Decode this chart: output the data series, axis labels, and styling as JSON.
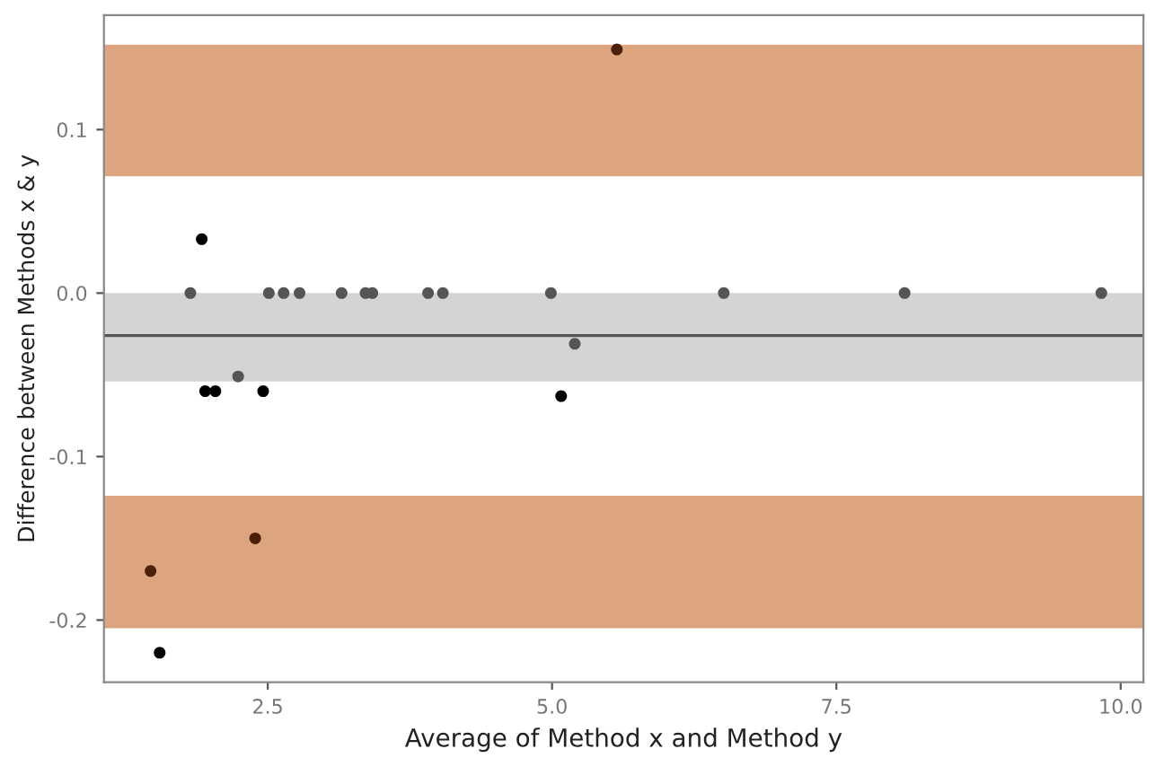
{
  "chart_data": {
    "type": "scatter",
    "xlabel": "Average of Method x and Method y",
    "ylabel": "Difference between Methods x & y",
    "x": [
      1.55,
      1.47,
      2.39,
      1.92,
      1.82,
      2.51,
      2.64,
      2.78,
      3.15,
      3.36,
      3.42,
      3.91,
      4.04,
      4.99,
      6.51,
      8.1,
      9.83,
      5.2,
      2.24,
      1.95,
      2.04,
      2.46,
      5.08,
      5.57
    ],
    "values": [
      -0.22,
      -0.17,
      -0.15,
      0.033,
      0.0,
      0.0,
      0.0,
      0.0,
      0.0,
      0.0,
      0.0,
      0.0,
      0.0,
      0.0,
      0.0,
      0.0,
      0.0,
      -0.031,
      -0.051,
      -0.06,
      -0.06,
      -0.06,
      -0.063,
      0.149
    ],
    "colors": [
      "#000000",
      "#4a2008",
      "#4a2008",
      "#000000",
      "#555555",
      "#555555",
      "#555555",
      "#555555",
      "#555555",
      "#555555",
      "#555555",
      "#555555",
      "#555555",
      "#555555",
      "#555555",
      "#555555",
      "#555555",
      "#555555",
      "#555555",
      "#000000",
      "#000000",
      "#000000",
      "#000000",
      "#4a2008"
    ],
    "marker": "circle",
    "xlim": [
      1.06,
      10.2
    ],
    "xticks": [
      {
        "value": 2.5,
        "label": "2.5"
      },
      {
        "value": 5.0,
        "label": "5.0"
      },
      {
        "value": 7.5,
        "label": "7.5"
      },
      {
        "value": 10.0,
        "label": "10.0"
      }
    ],
    "ylim": [
      -0.238,
      0.17
    ],
    "yticks": [
      {
        "value": -0.2,
        "label": "-0.2"
      },
      {
        "value": -0.1,
        "label": "-0.1"
      },
      {
        "value": 0.0,
        "label": "0.0"
      },
      {
        "value": 0.1,
        "label": "0.1"
      }
    ],
    "bands": [
      {
        "axis": "y",
        "from": 0.0715,
        "to": 0.152,
        "color": "#dca57f"
      },
      {
        "axis": "y",
        "from": -0.205,
        "to": -0.124,
        "color": "#dca57f"
      },
      {
        "axis": "y",
        "from": -0.054,
        "to": 0.0,
        "color": "#d4d4d4"
      }
    ],
    "ref_lines": [
      {
        "axis": "y",
        "value": -0.026,
        "color": "#555555",
        "line_style": "solid"
      }
    ],
    "grid": false
  }
}
